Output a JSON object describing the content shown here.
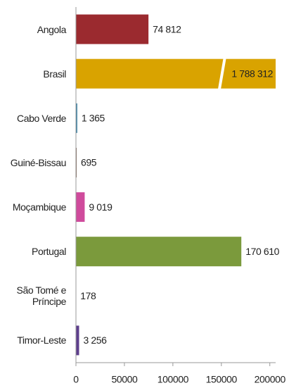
{
  "chart_data": {
    "type": "barh",
    "categories": [
      "Angola",
      "Brasil",
      "Cabo Verde",
      "Guiné-Bissau",
      "Moçambique",
      "Portugal",
      "São Tomé e Príncipe",
      "Timor-Leste"
    ],
    "values": [
      74812,
      1788312,
      1365,
      695,
      9019,
      170610,
      178,
      3256
    ],
    "value_labels": [
      "74 812",
      "1 788 312",
      "1 365",
      "695",
      "9 019",
      "170 610",
      "178",
      "3 256"
    ],
    "colors": [
      "#9b2a2f",
      "#d9a300",
      "#3b84a6",
      "#6b4a3a",
      "#cf4b9c",
      "#7b9a3c",
      "#e07b3a",
      "#5d3f8c"
    ],
    "xlim": [
      0,
      206000
    ],
    "xticks": [
      0,
      50000,
      100000,
      150000,
      200000
    ],
    "axis_break": true
  }
}
